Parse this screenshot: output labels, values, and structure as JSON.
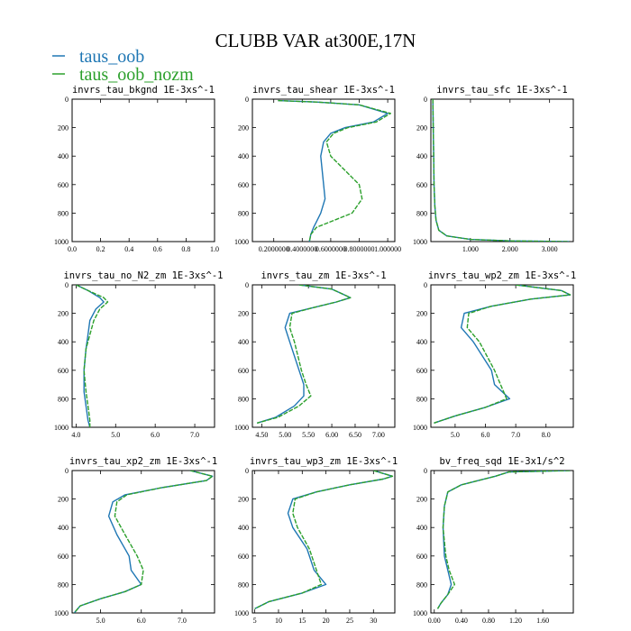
{
  "figure": {
    "title": "CLUBB VAR at300E,17N"
  },
  "legend": [
    {
      "label": "taus_oob",
      "color": "#1f77b4"
    },
    {
      "label": "taus_oob_nozm",
      "color": "#2ca02c"
    }
  ],
  "chart_data": [
    {
      "type": "line",
      "title": "invrs_tau_bkgnd   1E-3xs^-1",
      "xlim": [
        0,
        1
      ],
      "ylim": [
        1000,
        0
      ],
      "x_ticks": [
        0,
        0.2,
        0.4,
        0.6,
        0.8,
        1.0
      ],
      "x_tick_labels": [
        "0.0",
        "0.2",
        "0.4",
        "0.6",
        "0.8",
        "1.0"
      ],
      "y_ticks": [
        0,
        200,
        400,
        600,
        800,
        1000
      ],
      "y_tick_labels": [
        "0",
        "200",
        "400",
        "600",
        "800",
        "1000"
      ],
      "series": []
    },
    {
      "type": "line",
      "title": "invrs_tau_shear   1E-3xs^-1",
      "xlim": [
        0.05,
        1.05
      ],
      "ylim": [
        1000,
        0
      ],
      "x_ticks": [
        0.2,
        0.4,
        0.6,
        0.8,
        1.0
      ],
      "x_tick_labels": [
        "0.2000000",
        "0.4000000",
        "0.6000000",
        "0.8000000",
        "1.000000"
      ],
      "y_ticks": [
        0,
        200,
        400,
        600,
        800,
        1000
      ],
      "y_tick_labels": [
        "0",
        "200",
        "400",
        "600",
        "800",
        "1000"
      ],
      "series": [
        {
          "name": "taus_oob",
          "x": [
            0.23,
            0.5,
            0.8,
            1.0,
            0.9,
            0.7,
            0.6,
            0.55,
            0.53,
            0.54,
            0.55,
            0.56,
            0.53,
            0.5,
            0.48,
            0.46,
            0.45
          ],
          "y": [
            10,
            20,
            40,
            100,
            160,
            200,
            240,
            300,
            400,
            500,
            600,
            700,
            800,
            860,
            900,
            950,
            1000
          ]
        },
        {
          "name": "taus_oob_nozm",
          "x": [
            0.23,
            0.5,
            0.8,
            1.02,
            0.92,
            0.72,
            0.62,
            0.57,
            0.6,
            0.7,
            0.8,
            0.82,
            0.75,
            0.6,
            0.5,
            0.46,
            0.45
          ],
          "y": [
            10,
            20,
            40,
            100,
            160,
            200,
            240,
            300,
            400,
            500,
            600,
            700,
            800,
            860,
            900,
            950,
            1000
          ]
        }
      ]
    },
    {
      "type": "line",
      "title": "invrs_tau_sfc   1E-3xs^-1",
      "xlim": [
        0,
        3.6
      ],
      "ylim": [
        1000,
        0
      ],
      "x_ticks": [
        1,
        2,
        3
      ],
      "x_tick_labels": [
        "1.000",
        "2.000",
        "3.000"
      ],
      "y_ticks": [
        0,
        200,
        400,
        600,
        800,
        1000
      ],
      "y_tick_labels": [
        "0",
        "200",
        "400",
        "600",
        "800",
        "1000"
      ],
      "series": [
        {
          "name": "taus_oob",
          "x": [
            0.05,
            0.06,
            0.07,
            0.08,
            0.1,
            0.13,
            0.2,
            0.4,
            1.0,
            2.0,
            3.5
          ],
          "y": [
            0,
            200,
            400,
            600,
            750,
            850,
            920,
            960,
            985,
            995,
            1000
          ]
        },
        {
          "name": "taus_oob_nozm",
          "x": [
            0.05,
            0.06,
            0.07,
            0.08,
            0.1,
            0.13,
            0.2,
            0.4,
            1.0,
            2.0,
            3.5
          ],
          "y": [
            0,
            200,
            400,
            600,
            750,
            850,
            920,
            960,
            985,
            995,
            1000
          ]
        }
      ]
    },
    {
      "type": "line",
      "title": "invrs_tau_no_N2_zm   1E-3xs^-1",
      "xlim": [
        3.9,
        7.5
      ],
      "ylim": [
        1000,
        0
      ],
      "x_ticks": [
        4,
        5,
        6,
        7
      ],
      "x_tick_labels": [
        "4.0",
        "5.0",
        "6.0",
        "7.0"
      ],
      "y_ticks": [
        0,
        200,
        400,
        600,
        800,
        1000
      ],
      "y_tick_labels": [
        "0",
        "200",
        "400",
        "600",
        "800",
        "1000"
      ],
      "series": [
        {
          "name": "taus_oob",
          "x": [
            4.0,
            4.3,
            4.6,
            4.7,
            4.5,
            4.35,
            4.3,
            4.25,
            4.2,
            4.2,
            4.25,
            4.3,
            4.35
          ],
          "y": [
            0,
            40,
            90,
            120,
            170,
            250,
            350,
            450,
            600,
            750,
            850,
            950,
            1000
          ]
        },
        {
          "name": "taus_oob_nozm",
          "x": [
            4.0,
            4.3,
            4.7,
            4.8,
            4.6,
            4.45,
            4.35,
            4.25,
            4.2,
            4.25,
            4.3,
            4.35,
            4.35
          ],
          "y": [
            0,
            40,
            90,
            120,
            170,
            250,
            350,
            450,
            600,
            750,
            850,
            950,
            1000
          ]
        }
      ]
    },
    {
      "type": "line",
      "title": "invrs_tau_zm   1E-3xs^-1",
      "xlim": [
        4.3,
        7.35
      ],
      "ylim": [
        1000,
        0
      ],
      "x_ticks": [
        4.5,
        5.0,
        5.5,
        6.0,
        6.5,
        7.0
      ],
      "x_tick_labels": [
        "4.50",
        "5.00",
        "5.50",
        "6.00",
        "6.50",
        "7.00"
      ],
      "y_ticks": [
        0,
        200,
        400,
        600,
        800,
        1000
      ],
      "y_tick_labels": [
        "0",
        "200",
        "400",
        "600",
        "800",
        "1000"
      ],
      "series": [
        {
          "name": "taus_oob",
          "x": [
            5.3,
            6.0,
            6.4,
            6.1,
            5.6,
            5.1,
            5.0,
            5.1,
            5.3,
            5.4,
            5.4,
            5.2,
            4.8,
            4.4
          ],
          "y": [
            0,
            30,
            90,
            120,
            160,
            200,
            300,
            400,
            600,
            700,
            780,
            850,
            930,
            970
          ]
        },
        {
          "name": "taus_oob_nozm",
          "x": [
            5.3,
            6.0,
            6.4,
            6.1,
            5.6,
            5.15,
            5.1,
            5.2,
            5.35,
            5.45,
            5.55,
            5.3,
            4.85,
            4.4
          ],
          "y": [
            0,
            30,
            90,
            120,
            160,
            200,
            300,
            400,
            600,
            700,
            780,
            850,
            930,
            970
          ]
        }
      ]
    },
    {
      "type": "line",
      "title": "invrs_tau_wp2_zm   1E-3xs^-1",
      "xlim": [
        4.2,
        8.9
      ],
      "ylim": [
        1000,
        0
      ],
      "x_ticks": [
        5,
        6,
        7,
        8
      ],
      "x_tick_labels": [
        "5.0",
        "6.0",
        "7.0",
        "8.0"
      ],
      "y_ticks": [
        0,
        200,
        400,
        600,
        800,
        1000
      ],
      "y_tick_labels": [
        "0",
        "200",
        "400",
        "600",
        "800",
        "1000"
      ],
      "series": [
        {
          "name": "taus_oob",
          "x": [
            7.0,
            8.5,
            8.8,
            7.5,
            6.2,
            5.3,
            5.2,
            5.6,
            6.2,
            6.3,
            6.8,
            6.0,
            5.0,
            4.3
          ],
          "y": [
            0,
            40,
            70,
            100,
            150,
            200,
            300,
            400,
            600,
            700,
            800,
            860,
            920,
            970
          ]
        },
        {
          "name": "taus_oob_nozm",
          "x": [
            7.0,
            8.5,
            8.8,
            7.5,
            6.2,
            5.45,
            5.4,
            5.8,
            6.3,
            6.5,
            6.7,
            6.0,
            5.0,
            4.3
          ],
          "y": [
            0,
            40,
            70,
            100,
            150,
            200,
            300,
            400,
            600,
            700,
            800,
            860,
            920,
            970
          ]
        }
      ]
    },
    {
      "type": "line",
      "title": "invrs_tau_xp2_zm   1E-3xs^-1",
      "xlim": [
        4.3,
        7.8
      ],
      "ylim": [
        1000,
        0
      ],
      "x_ticks": [
        5,
        6,
        7
      ],
      "x_tick_labels": [
        "5.0",
        "6.0",
        "7.0"
      ],
      "y_ticks": [
        0,
        200,
        400,
        600,
        800,
        1000
      ],
      "y_tick_labels": [
        "0",
        "200",
        "400",
        "600",
        "800",
        "1000"
      ],
      "series": [
        {
          "name": "taus_oob",
          "x": [
            7.2,
            7.75,
            7.6,
            6.5,
            5.6,
            5.3,
            5.2,
            5.4,
            5.7,
            5.75,
            6.0,
            5.6,
            5.0,
            4.5,
            4.35
          ],
          "y": [
            0,
            40,
            70,
            120,
            170,
            220,
            320,
            450,
            600,
            700,
            800,
            850,
            900,
            950,
            1000
          ]
        },
        {
          "name": "taus_oob_nozm",
          "x": [
            7.2,
            7.75,
            7.6,
            6.5,
            5.65,
            5.4,
            5.35,
            5.6,
            5.9,
            6.05,
            6.0,
            5.6,
            5.0,
            4.5,
            4.35
          ],
          "y": [
            0,
            40,
            70,
            120,
            170,
            220,
            320,
            450,
            600,
            700,
            800,
            850,
            900,
            950,
            1000
          ]
        }
      ]
    },
    {
      "type": "line",
      "title": "invrs_tau_wp3_zm   1E-3xs^-1",
      "xlim": [
        4.5,
        34.5
      ],
      "ylim": [
        1000,
        0
      ],
      "x_ticks": [
        5,
        10,
        15,
        20,
        25,
        30
      ],
      "x_tick_labels": [
        "5",
        "10",
        "15",
        "20",
        "25",
        "30"
      ],
      "y_ticks": [
        0,
        200,
        400,
        600,
        800,
        1000
      ],
      "y_tick_labels": [
        "0",
        "200",
        "400",
        "600",
        "800",
        "1000"
      ],
      "series": [
        {
          "name": "taus_oob",
          "x": [
            30,
            34,
            32,
            25,
            18,
            13,
            12,
            13,
            16,
            17.5,
            20,
            15,
            8,
            5
          ],
          "y": [
            0,
            40,
            60,
            100,
            150,
            200,
            300,
            400,
            550,
            700,
            800,
            860,
            920,
            970
          ]
        },
        {
          "name": "taus_oob_nozm",
          "x": [
            30,
            34,
            32,
            25,
            18,
            13.5,
            13,
            14,
            16.5,
            18,
            19,
            15,
            8,
            5
          ],
          "y": [
            0,
            40,
            60,
            100,
            150,
            200,
            300,
            400,
            550,
            700,
            800,
            860,
            920,
            970
          ]
        }
      ]
    },
    {
      "type": "line",
      "title": "bv_freq_sqd   1E-3x1/s^2",
      "xlim": [
        -0.05,
        2.05
      ],
      "ylim": [
        1000,
        0
      ],
      "x_ticks": [
        0,
        0.4,
        0.8,
        1.2,
        1.6
      ],
      "x_tick_labels": [
        "0.00",
        "0.40",
        "0.80",
        "1.20",
        "1.60"
      ],
      "y_ticks": [
        0,
        200,
        400,
        600,
        800,
        1000
      ],
      "y_tick_labels": [
        "0",
        "200",
        "400",
        "600",
        "800",
        "1000"
      ],
      "series": [
        {
          "name": "taus_oob",
          "x": [
            2.0,
            1.1,
            0.9,
            0.4,
            0.2,
            0.15,
            0.13,
            0.15,
            0.2,
            0.25,
            0.2,
            0.1,
            0.05
          ],
          "y": [
            0,
            10,
            40,
            100,
            150,
            250,
            400,
            600,
            700,
            800,
            870,
            930,
            970
          ]
        },
        {
          "name": "taus_oob_nozm",
          "x": [
            2.0,
            1.1,
            0.9,
            0.4,
            0.2,
            0.15,
            0.13,
            0.17,
            0.22,
            0.3,
            0.2,
            0.1,
            0.05
          ],
          "y": [
            0,
            10,
            40,
            100,
            150,
            250,
            400,
            600,
            700,
            800,
            870,
            930,
            970
          ]
        }
      ]
    }
  ]
}
